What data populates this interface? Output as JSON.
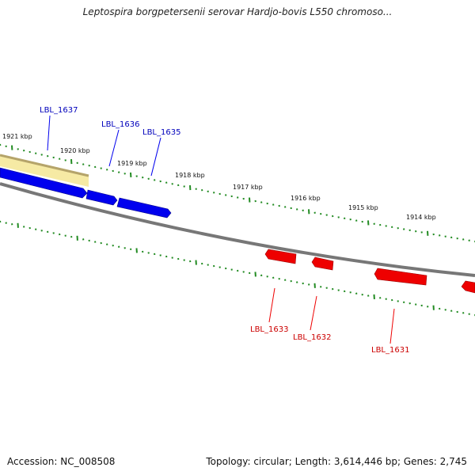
{
  "title": "Leptospira borgpetersenii serovar Hardjo-bovis L550 chromoso...",
  "footer": {
    "accession": "Accession: NC_008508",
    "topology": "Topology: circular; Length: 3,614,446 bp; Genes: 2,745"
  },
  "colors": {
    "backbone": "#777777",
    "forward_gene": "#0000ee",
    "reverse_gene": "#ee0000",
    "forward_label": "#0000bb",
    "reverse_label": "#cc0000",
    "tick": "#228b22",
    "highlight_fill": "#f6eaa4",
    "highlight_edge": "#b5a46a"
  },
  "kbp_labels": [
    "1921 kbp",
    "1920 kbp",
    "1919 kbp",
    "1918 kbp",
    "1917 kbp",
    "1916 kbp",
    "1915 kbp",
    "1914 kbp"
  ],
  "forward_genes": [
    {
      "name": "LBL_1637",
      "highlighted": true
    },
    {
      "name": "LBL_1636",
      "highlighted": false
    },
    {
      "name": "LBL_1635",
      "highlighted": false
    }
  ],
  "reverse_genes": [
    {
      "name": "LBL_1633"
    },
    {
      "name": "LBL_1632"
    },
    {
      "name": "LBL_1631"
    }
  ]
}
